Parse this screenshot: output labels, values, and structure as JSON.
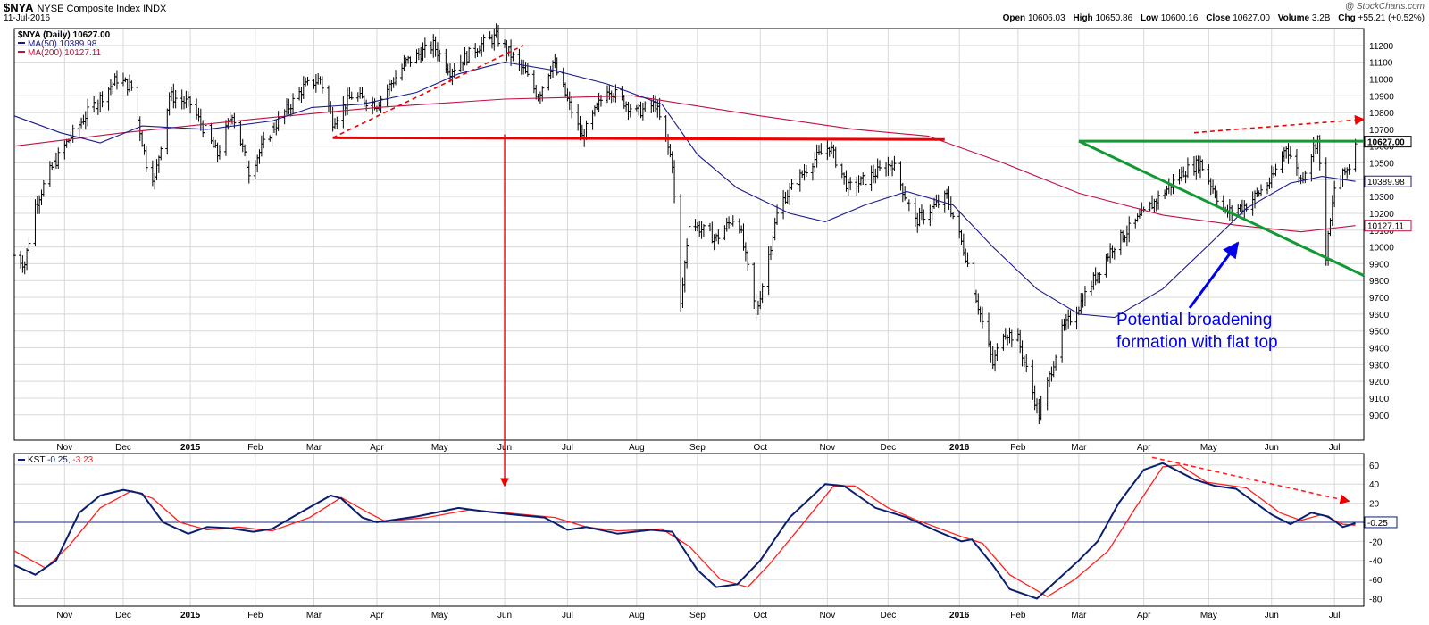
{
  "header": {
    "symbol": "$NYA",
    "name": "NYSE Composite Index INDX",
    "date": "11-Jul-2016",
    "copyright": "@ StockCharts.com",
    "quote": [
      {
        "label": "Open",
        "value": "10606.03"
      },
      {
        "label": "High",
        "value": "10650.86"
      },
      {
        "label": "Low",
        "value": "10600.16"
      },
      {
        "label": "Close",
        "value": "10627.00"
      },
      {
        "label": "Volume",
        "value": "3.2B"
      },
      {
        "label": "Chg",
        "value": "+55.21 (+0.52%)"
      }
    ]
  },
  "colors": {
    "price": "#000000",
    "ma50": "#1a1a8c",
    "ma200": "#c01040",
    "kst": "#0a1e6e",
    "signal": "#ff2020",
    "support": "#ee0000",
    "trend": "#119933",
    "annotation": "#0000ee"
  },
  "chart_data": [
    {
      "type": "line",
      "legend": [
        "$NYA (Daily) 10627.00",
        "MA(50) 10389.98",
        "MA(200) 10127.11"
      ],
      "ylim": [
        8850,
        11300
      ],
      "y_ticks": [
        9000,
        9100,
        9200,
        9300,
        9400,
        9500,
        9600,
        9700,
        9800,
        9900,
        10000,
        10100,
        10200,
        10300,
        10400,
        10500,
        10600,
        10700,
        10800,
        10900,
        11000,
        11100,
        11200
      ],
      "x_range": [
        "2014-10-10",
        "2016-07-15"
      ],
      "x_ticks": [
        {
          "label": "Nov",
          "date": "2014-11-03"
        },
        {
          "label": "Dec",
          "date": "2014-12-01"
        },
        {
          "label": "2015",
          "date": "2015-01-02"
        },
        {
          "label": "Feb",
          "date": "2015-02-02"
        },
        {
          "label": "Mar",
          "date": "2015-03-02"
        },
        {
          "label": "Apr",
          "date": "2015-04-01"
        },
        {
          "label": "May",
          "date": "2015-05-01"
        },
        {
          "label": "Jun",
          "date": "2015-06-01"
        },
        {
          "label": "Jul",
          "date": "2015-07-01"
        },
        {
          "label": "Aug",
          "date": "2015-08-03"
        },
        {
          "label": "Sep",
          "date": "2015-09-01"
        },
        {
          "label": "Oct",
          "date": "2015-10-01"
        },
        {
          "label": "Nov",
          "date": "2015-11-02"
        },
        {
          "label": "Dec",
          "date": "2015-12-01"
        },
        {
          "label": "2016",
          "date": "2016-01-04"
        },
        {
          "label": "Feb",
          "date": "2016-02-01"
        },
        {
          "label": "Mar",
          "date": "2016-03-01"
        },
        {
          "label": "Apr",
          "date": "2016-04-01"
        },
        {
          "label": "May",
          "date": "2016-05-02"
        },
        {
          "label": "Jun",
          "date": "2016-06-01"
        },
        {
          "label": "Jul",
          "date": "2016-07-01"
        }
      ],
      "price_path": [
        [
          "2014-10-10",
          9950
        ],
        [
          "2014-10-15",
          9900
        ],
        [
          "2014-10-20",
          10250
        ],
        [
          "2014-10-27",
          10450
        ],
        [
          "2014-11-03",
          10600
        ],
        [
          "2014-11-14",
          10800
        ],
        [
          "2014-11-28",
          11000
        ],
        [
          "2014-12-05",
          10950
        ],
        [
          "2014-12-12",
          10500
        ],
        [
          "2014-12-16",
          10400
        ],
        [
          "2014-12-23",
          10900
        ],
        [
          "2015-01-02",
          10850
        ],
        [
          "2015-01-15",
          10550
        ],
        [
          "2015-01-22",
          10800
        ],
        [
          "2015-01-30",
          10450
        ],
        [
          "2015-02-10",
          10700
        ],
        [
          "2015-02-25",
          10950
        ],
        [
          "2015-03-05",
          11000
        ],
        [
          "2015-03-11",
          10750
        ],
        [
          "2015-03-20",
          10900
        ],
        [
          "2015-04-01",
          10850
        ],
        [
          "2015-04-15",
          11100
        ],
        [
          "2015-04-28",
          11200
        ],
        [
          "2015-05-06",
          11050
        ],
        [
          "2015-05-20",
          11200
        ],
        [
          "2015-05-28",
          11250
        ],
        [
          "2015-06-10",
          11050
        ],
        [
          "2015-06-17",
          10900
        ],
        [
          "2015-06-24",
          11100
        ],
        [
          "2015-07-08",
          10650
        ],
        [
          "2015-07-20",
          10950
        ],
        [
          "2015-08-03",
          10800
        ],
        [
          "2015-08-12",
          10850
        ],
        [
          "2015-08-20",
          10500
        ],
        [
          "2015-08-24",
          9650
        ],
        [
          "2015-08-28",
          10150
        ],
        [
          "2015-09-10",
          10050
        ],
        [
          "2015-09-20",
          10200
        ],
        [
          "2015-09-29",
          9600
        ],
        [
          "2015-10-10",
          10250
        ],
        [
          "2015-10-25",
          10500
        ],
        [
          "2015-11-03",
          10600
        ],
        [
          "2015-11-12",
          10350
        ],
        [
          "2015-11-20",
          10400
        ],
        [
          "2015-12-03",
          10500
        ],
        [
          "2015-12-14",
          10150
        ],
        [
          "2015-12-29",
          10300
        ],
        [
          "2016-01-07",
          9950
        ],
        [
          "2016-01-20",
          9300
        ],
        [
          "2016-01-25",
          9500
        ],
        [
          "2016-02-01",
          9450
        ],
        [
          "2016-02-11",
          9000
        ],
        [
          "2016-02-22",
          9500
        ],
        [
          "2016-03-01",
          9650
        ],
        [
          "2016-03-17",
          10000
        ],
        [
          "2016-04-01",
          10200
        ],
        [
          "2016-04-20",
          10450
        ],
        [
          "2016-04-28",
          10500
        ],
        [
          "2016-05-10",
          10200
        ],
        [
          "2016-05-20",
          10250
        ],
        [
          "2016-06-01",
          10400
        ],
        [
          "2016-06-08",
          10600
        ],
        [
          "2016-06-15",
          10400
        ],
        [
          "2016-06-23",
          10650
        ],
        [
          "2016-06-27",
          9950
        ],
        [
          "2016-07-01",
          10350
        ],
        [
          "2016-07-08",
          10480
        ],
        [
          "2016-07-11",
          10627
        ]
      ],
      "ma50_path": [
        [
          "2014-10-10",
          10780
        ],
        [
          "2014-11-01",
          10680
        ],
        [
          "2014-11-20",
          10620
        ],
        [
          "2014-12-10",
          10720
        ],
        [
          "2015-01-10",
          10700
        ],
        [
          "2015-02-10",
          10750
        ],
        [
          "2015-03-01",
          10830
        ],
        [
          "2015-03-25",
          10850
        ],
        [
          "2015-04-20",
          10920
        ],
        [
          "2015-05-10",
          11030
        ],
        [
          "2015-06-01",
          11100
        ],
        [
          "2015-06-25",
          11050
        ],
        [
          "2015-07-20",
          10970
        ],
        [
          "2015-08-15",
          10850
        ],
        [
          "2015-09-01",
          10550
        ],
        [
          "2015-09-20",
          10350
        ],
        [
          "2015-10-15",
          10200
        ],
        [
          "2015-11-01",
          10150
        ],
        [
          "2015-11-20",
          10250
        ],
        [
          "2015-12-10",
          10330
        ],
        [
          "2016-01-01",
          10250
        ],
        [
          "2016-01-20",
          10000
        ],
        [
          "2016-02-10",
          9750
        ],
        [
          "2016-03-01",
          9600
        ],
        [
          "2016-03-18",
          9580
        ],
        [
          "2016-04-10",
          9750
        ],
        [
          "2016-05-01",
          10000
        ],
        [
          "2016-05-20",
          10230
        ],
        [
          "2016-06-10",
          10380
        ],
        [
          "2016-06-25",
          10420
        ],
        [
          "2016-07-11",
          10390
        ]
      ],
      "ma200_path": [
        [
          "2014-10-10",
          10600
        ],
        [
          "2014-12-01",
          10680
        ],
        [
          "2015-02-01",
          10760
        ],
        [
          "2015-04-01",
          10830
        ],
        [
          "2015-06-01",
          10880
        ],
        [
          "2015-08-01",
          10900
        ],
        [
          "2015-10-01",
          10780
        ],
        [
          "2015-11-15",
          10700
        ],
        [
          "2015-12-20",
          10660
        ],
        [
          "2016-01-25",
          10500
        ],
        [
          "2016-03-01",
          10320
        ],
        [
          "2016-04-10",
          10190
        ],
        [
          "2016-05-15",
          10130
        ],
        [
          "2016-06-15",
          10090
        ],
        [
          "2016-07-11",
          10127
        ]
      ],
      "annotation": "Potential broadening\nformation with flat top",
      "value_badges": [
        {
          "label": "10627.00",
          "value": 10627,
          "color": "#000000",
          "bold": true
        },
        {
          "label": "10389.98",
          "value": 10389.98,
          "color": "#1a1a8c"
        },
        {
          "label": "10127.11",
          "value": 10127.11,
          "color": "#c01040"
        }
      ]
    },
    {
      "type": "line",
      "legend_prefix": "KST",
      "legend_kst": "-0.25,",
      "legend_signal": "-3.23",
      "ylim": [
        -88,
        72
      ],
      "y_ticks": [
        -80,
        -60,
        -40,
        -20,
        20,
        40,
        60
      ],
      "zero_badge": "-0.25",
      "kst_path": [
        [
          "2014-10-10",
          -45
        ],
        [
          "2014-10-20",
          -55
        ],
        [
          "2014-10-30",
          -40
        ],
        [
          "2014-11-10",
          10
        ],
        [
          "2014-11-20",
          28
        ],
        [
          "2014-12-01",
          34
        ],
        [
          "2014-12-10",
          30
        ],
        [
          "2014-12-20",
          0
        ],
        [
          "2015-01-01",
          -12
        ],
        [
          "2015-01-10",
          -5
        ],
        [
          "2015-01-20",
          -6
        ],
        [
          "2015-02-01",
          -10
        ],
        [
          "2015-02-10",
          -7
        ],
        [
          "2015-02-25",
          12
        ],
        [
          "2015-03-10",
          28
        ],
        [
          "2015-03-15",
          25
        ],
        [
          "2015-03-25",
          5
        ],
        [
          "2015-04-01",
          0
        ],
        [
          "2015-04-20",
          6
        ],
        [
          "2015-05-10",
          15
        ],
        [
          "2015-05-20",
          12
        ],
        [
          "2015-06-05",
          8
        ],
        [
          "2015-06-20",
          5
        ],
        [
          "2015-07-01",
          -8
        ],
        [
          "2015-07-10",
          -5
        ],
        [
          "2015-07-25",
          -12
        ],
        [
          "2015-08-10",
          -8
        ],
        [
          "2015-08-20",
          -10
        ],
        [
          "2015-09-01",
          -50
        ],
        [
          "2015-09-10",
          -68
        ],
        [
          "2015-09-20",
          -65
        ],
        [
          "2015-10-01",
          -40
        ],
        [
          "2015-10-15",
          5
        ],
        [
          "2015-11-01",
          40
        ],
        [
          "2015-11-10",
          38
        ],
        [
          "2015-11-25",
          15
        ],
        [
          "2015-12-10",
          5
        ],
        [
          "2015-12-25",
          -10
        ],
        [
          "2016-01-05",
          -20
        ],
        [
          "2016-01-10",
          -18
        ],
        [
          "2016-01-20",
          -45
        ],
        [
          "2016-01-28",
          -70
        ],
        [
          "2016-02-10",
          -80
        ],
        [
          "2016-02-20",
          -60
        ],
        [
          "2016-03-01",
          -40
        ],
        [
          "2016-03-10",
          -20
        ],
        [
          "2016-03-20",
          20
        ],
        [
          "2016-04-01",
          55
        ],
        [
          "2016-04-10",
          62
        ],
        [
          "2016-04-25",
          45
        ],
        [
          "2016-05-05",
          38
        ],
        [
          "2016-05-15",
          35
        ],
        [
          "2016-06-01",
          8
        ],
        [
          "2016-06-10",
          -2
        ],
        [
          "2016-06-20",
          10
        ],
        [
          "2016-06-28",
          6
        ],
        [
          "2016-07-05",
          -5
        ],
        [
          "2016-07-11",
          -1
        ]
      ],
      "signal_path": [
        [
          "2014-10-10",
          -30
        ],
        [
          "2014-10-25",
          -48
        ],
        [
          "2014-11-05",
          -25
        ],
        [
          "2014-11-20",
          15
        ],
        [
          "2014-12-05",
          33
        ],
        [
          "2014-12-15",
          25
        ],
        [
          "2014-12-28",
          0
        ],
        [
          "2015-01-10",
          -8
        ],
        [
          "2015-01-25",
          -5
        ],
        [
          "2015-02-10",
          -9
        ],
        [
          "2015-02-28",
          5
        ],
        [
          "2015-03-15",
          26
        ],
        [
          "2015-03-28",
          10
        ],
        [
          "2015-04-05",
          1
        ],
        [
          "2015-04-25",
          5
        ],
        [
          "2015-05-15",
          13
        ],
        [
          "2015-06-01",
          10
        ],
        [
          "2015-06-25",
          5
        ],
        [
          "2015-07-10",
          -5
        ],
        [
          "2015-07-25",
          -9
        ],
        [
          "2015-08-15",
          -7
        ],
        [
          "2015-08-28",
          -25
        ],
        [
          "2015-09-12",
          -60
        ],
        [
          "2015-09-25",
          -68
        ],
        [
          "2015-10-05",
          -45
        ],
        [
          "2015-10-20",
          -5
        ],
        [
          "2015-11-05",
          38
        ],
        [
          "2015-11-15",
          38
        ],
        [
          "2015-12-01",
          15
        ],
        [
          "2015-12-15",
          2
        ],
        [
          "2016-01-05",
          -15
        ],
        [
          "2016-01-15",
          -22
        ],
        [
          "2016-01-28",
          -55
        ],
        [
          "2016-02-15",
          -78
        ],
        [
          "2016-02-28",
          -60
        ],
        [
          "2016-03-15",
          -30
        ],
        [
          "2016-03-28",
          15
        ],
        [
          "2016-04-10",
          58
        ],
        [
          "2016-04-18",
          60
        ],
        [
          "2016-05-01",
          42
        ],
        [
          "2016-05-20",
          36
        ],
        [
          "2016-06-05",
          10
        ],
        [
          "2016-06-15",
          2
        ],
        [
          "2016-06-25",
          8
        ],
        [
          "2016-07-05",
          -2
        ],
        [
          "2016-07-11",
          -3
        ]
      ]
    }
  ]
}
